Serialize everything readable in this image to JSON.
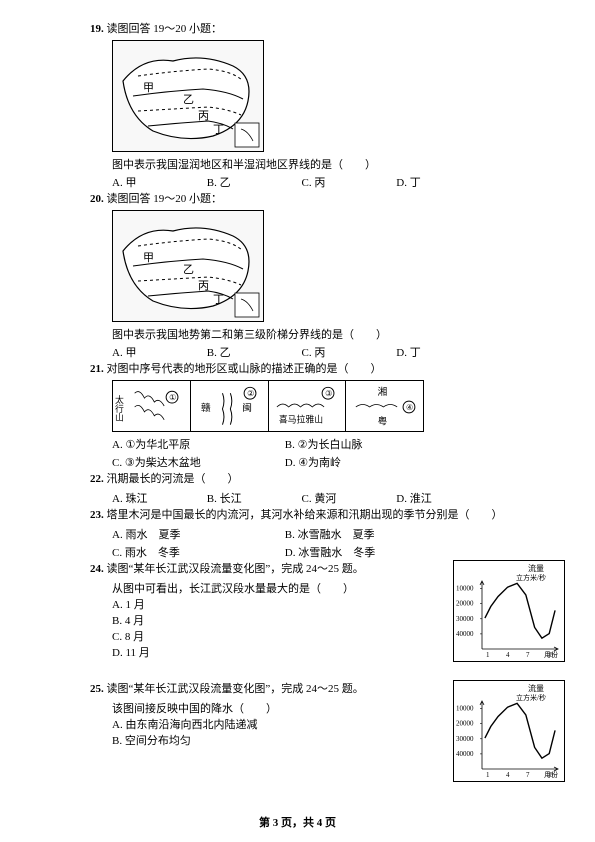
{
  "q19": {
    "num": "19.",
    "stem": "读图回答 19～20 小题：",
    "sub": "图中表示我国湿润地区和半湿润地区界线的是（　　）",
    "opts": [
      "A. 甲",
      "B. 乙",
      "C. 丙",
      "D. 丁"
    ],
    "map": {
      "labels": [
        "甲",
        "乙",
        "丙",
        "丁"
      ]
    }
  },
  "q20": {
    "num": "20.",
    "stem": "读图回答 19～20 小题：",
    "sub": "图中表示我国地势第二和第三级阶梯分界线的是（　　）",
    "opts": [
      "A. 甲",
      "B. 乙",
      "C. 丙",
      "D. 丁"
    ],
    "map": {
      "labels": [
        "甲",
        "乙",
        "丙",
        "丁"
      ]
    }
  },
  "q21": {
    "num": "21.",
    "stem": "对图中序号代表的地形区或山脉的描述正确的是（　　）",
    "cells": [
      {
        "left": "太行山",
        "num": "①"
      },
      {
        "left": "赣",
        "right": "闽",
        "num": "②"
      },
      {
        "label": "喜马拉雅山",
        "num": "③"
      },
      {
        "left": "湘",
        "right": "粤",
        "num": "④"
      }
    ],
    "opts": [
      "A. ①为华北平原",
      "B. ②为长白山脉",
      "C. ③为柴达木盆地",
      "D. ④为南岭"
    ]
  },
  "q22": {
    "num": "22.",
    "stem": "汛期最长的河流是（　　）",
    "opts": [
      "A. 珠江",
      "B. 长江",
      "C. 黄河",
      "D. 淮江"
    ]
  },
  "q23": {
    "num": "23.",
    "stem": "塔里木河是中国最长的内流河，其河水补给来源和汛期出现的季节分别是（　　）",
    "opts": [
      "A. 雨水　夏季",
      "B. 冰雪融水　夏季",
      "C. 雨水　冬季",
      "D. 冰雪融水　冬季"
    ]
  },
  "q24": {
    "num": "24.",
    "stem1": "读图“某年长江武汉段流量变化图”，完成 24～25 题。",
    "stem2": "从图中可看出，长江武汉段水量最大的是（　　）",
    "opts": [
      "A. 1 月",
      "B. 4 月",
      "C. 8 月",
      "D. 11 月"
    ]
  },
  "q25": {
    "num": "25.",
    "stem1": "读图“某年长江武汉段流量变化图”，完成 24～25 题。",
    "stem2": "该图间接反映中国的降水（　　）",
    "opts": [
      "A. 由东南沿海向西北内陆递减",
      "B. 空间分布均匀"
    ]
  },
  "chart": {
    "title": "流量",
    "ylabel": "立方米/秒",
    "yticks": [
      "40000",
      "30000",
      "20000",
      "10000"
    ],
    "xticks": [
      "1",
      "4",
      "7",
      "10"
    ],
    "xlabel": "月份",
    "curve": [
      [
        4,
        40
      ],
      [
        12,
        55
      ],
      [
        22,
        68
      ],
      [
        35,
        80
      ],
      [
        48,
        85
      ],
      [
        60,
        70
      ],
      [
        72,
        28
      ],
      [
        82,
        14
      ],
      [
        92,
        20
      ],
      [
        100,
        50
      ]
    ],
    "ymax": 88,
    "xmax": 104,
    "line_color": "#000000",
    "bg": "#ffffff"
  },
  "footer": "第 3 页，共 4 页"
}
